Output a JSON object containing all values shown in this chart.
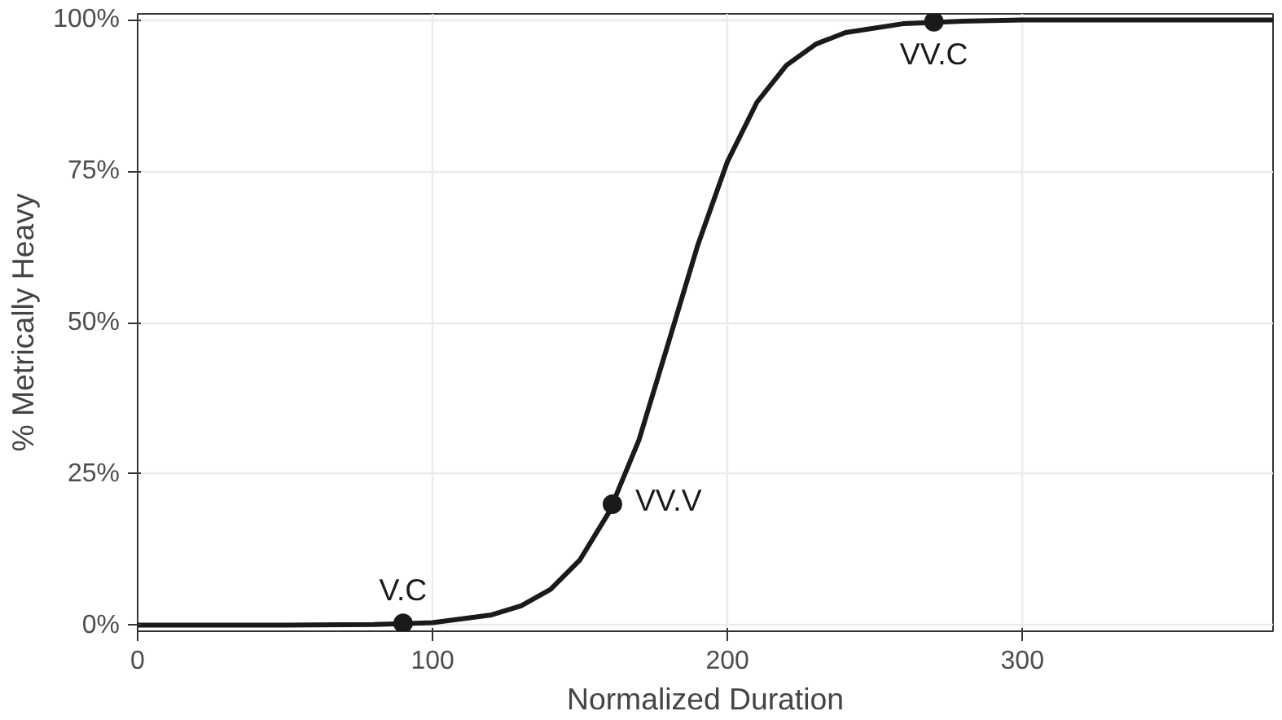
{
  "chart_data": {
    "type": "line",
    "xlabel": "Normalized Duration",
    "ylabel": "% Metrically Heavy",
    "series": [
      {
        "color": "#1a1a1a",
        "x": [
          0,
          50,
          80,
          100,
          120,
          130,
          140,
          150,
          160,
          170,
          180,
          190,
          200,
          210,
          220,
          230,
          240,
          260,
          280,
          300,
          330,
          385
        ],
        "values": [
          0,
          0,
          0.1,
          0.4,
          1.7,
          3.2,
          5.9,
          10.8,
          18.8,
          30.6,
          46.7,
          62.9,
          76.6,
          86.4,
          92.5,
          96.0,
          97.9,
          99.4,
          99.8,
          100,
          100,
          100
        ]
      },
      {
        "type": "scatter",
        "color": "#1a1a1a",
        "x": [
          90,
          161,
          270
        ],
        "values": [
          0.3,
          20,
          99.7
        ]
      }
    ],
    "annotations": [
      {
        "text": "V.C",
        "x": 90,
        "y": 0.3
      },
      {
        "text": "VV.V",
        "x": 161,
        "y": 20
      },
      {
        "text": "VV.C",
        "x": 270,
        "y": 99.7
      }
    ],
    "xlim": [
      0,
      385
    ],
    "xticks": [
      0,
      100,
      200,
      300
    ],
    "ylim": [
      -1,
      101
    ],
    "yticks": [
      {
        "value": 0,
        "label": "0%"
      },
      {
        "value": 25,
        "label": "25%"
      },
      {
        "value": 50,
        "label": "50%"
      },
      {
        "value": 75,
        "label": "75%"
      },
      {
        "value": 100,
        "label": "100%"
      }
    ],
    "grid": true
  }
}
